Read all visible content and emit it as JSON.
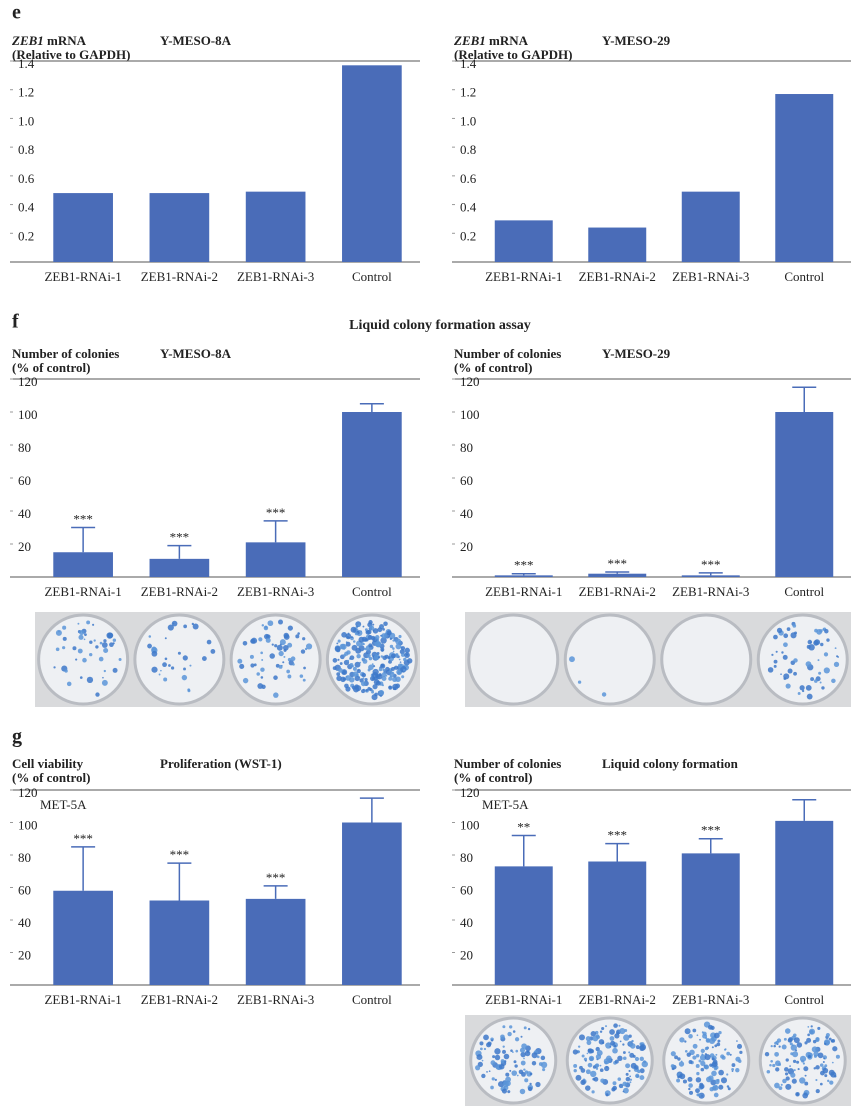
{
  "panel_labels": [
    "e",
    "f",
    "g"
  ],
  "heading": "Liquid colony formation assay",
  "chart_data": [
    {
      "type": "bar",
      "title": "Y-MESO-8A",
      "ylabel": [
        "ZEB1 mRNA",
        "(Relative to GAPDH)"
      ],
      "ylabel_italic_first_word": true,
      "categories": [
        "ZEB1-RNAi-1",
        "ZEB1-RNAi-2",
        "ZEB1-RNAi-3",
        "Control"
      ],
      "values": [
        0.48,
        0.48,
        0.49,
        1.37
      ],
      "color": "#4a6cb8",
      "ylim": [
        0,
        1.4
      ],
      "yticks": [
        0.2,
        0.4,
        0.6,
        0.8,
        {
          "value": 1,
          "label": "1.0"
        },
        1.2,
        1.4
      ]
    },
    {
      "type": "bar",
      "title": "Y-MESO-29",
      "ylabel": [
        "ZEB1 mRNA",
        "(Relative to GAPDH)"
      ],
      "ylabel_italic_first_word": true,
      "categories": [
        "ZEB1-RNAi-1",
        "ZEB1-RNAi-2",
        "ZEB1-RNAi-3",
        "Control"
      ],
      "values": [
        0.29,
        0.24,
        0.49,
        1.17
      ],
      "color": "#4a6cb8",
      "ylim": [
        0,
        1.4
      ],
      "yticks": [
        0.2,
        0.4,
        0.6,
        0.8,
        {
          "value": 1,
          "label": "1.0"
        },
        1.2,
        1.4
      ]
    },
    {
      "type": "bar",
      "title": "Y-MESO-8A",
      "ylabel": [
        "Number of colonies",
        "(% of control)"
      ],
      "categories": [
        "ZEB1-RNAi-1",
        "ZEB1-RNAi-2",
        "ZEB1-RNAi-3",
        "Control"
      ],
      "values": [
        15,
        11,
        21,
        100
      ],
      "errors": [
        15,
        8,
        13,
        5
      ],
      "annotations": [
        "***",
        "***",
        "***",
        null
      ],
      "color": "#4a6cb8",
      "ylim": [
        0,
        120
      ],
      "yticks": [
        20,
        40,
        60,
        80,
        100,
        120
      ]
    },
    {
      "type": "bar",
      "title": "Y-MESO-29",
      "ylabel": [
        "Number of colonies",
        "(% of control)"
      ],
      "categories": [
        "ZEB1-RNAi-1",
        "ZEB1-RNAi-2",
        "ZEB1-RNAi-3",
        "Control"
      ],
      "values": [
        1,
        2,
        1,
        100
      ],
      "errors": [
        1,
        1,
        1.5,
        15
      ],
      "annotations": [
        "***",
        "***",
        "***",
        null
      ],
      "color": "#4a6cb8",
      "ylim": [
        0,
        120
      ],
      "yticks": [
        20,
        40,
        60,
        80,
        100,
        120
      ]
    },
    {
      "type": "bar",
      "title": "Proliferation (WST-1)",
      "ylabel": [
        "Cell viability",
        "(% of control)"
      ],
      "note": "MET-5A",
      "categories": [
        "ZEB1-RNAi-1",
        "ZEB1-RNAi-2",
        "ZEB1-RNAi-3",
        "Control"
      ],
      "values": [
        58,
        52,
        53,
        100
      ],
      "errors": [
        27,
        23,
        8,
        15
      ],
      "annotations": [
        "***",
        "***",
        "***",
        null
      ],
      "color": "#4a6cb8",
      "ylim": [
        0,
        120
      ],
      "yticks": [
        20,
        40,
        60,
        80,
        100,
        120
      ]
    },
    {
      "type": "bar",
      "title": "Liquid colony formation",
      "ylabel": [
        "Number of colonies",
        "(% of control)"
      ],
      "note": "MET-5A",
      "categories": [
        "ZEB1-RNAi-1",
        "ZEB1-RNAi-2",
        "ZEB1-RNAi-3",
        "Control"
      ],
      "values": [
        73,
        76,
        81,
        101
      ],
      "errors": [
        19,
        11,
        9,
        13
      ],
      "annotations": [
        "**",
        "***",
        "***",
        null
      ],
      "color": "#4a6cb8",
      "ylim": [
        0,
        120
      ],
      "yticks": [
        20,
        40,
        60,
        80,
        100,
        120
      ]
    }
  ]
}
